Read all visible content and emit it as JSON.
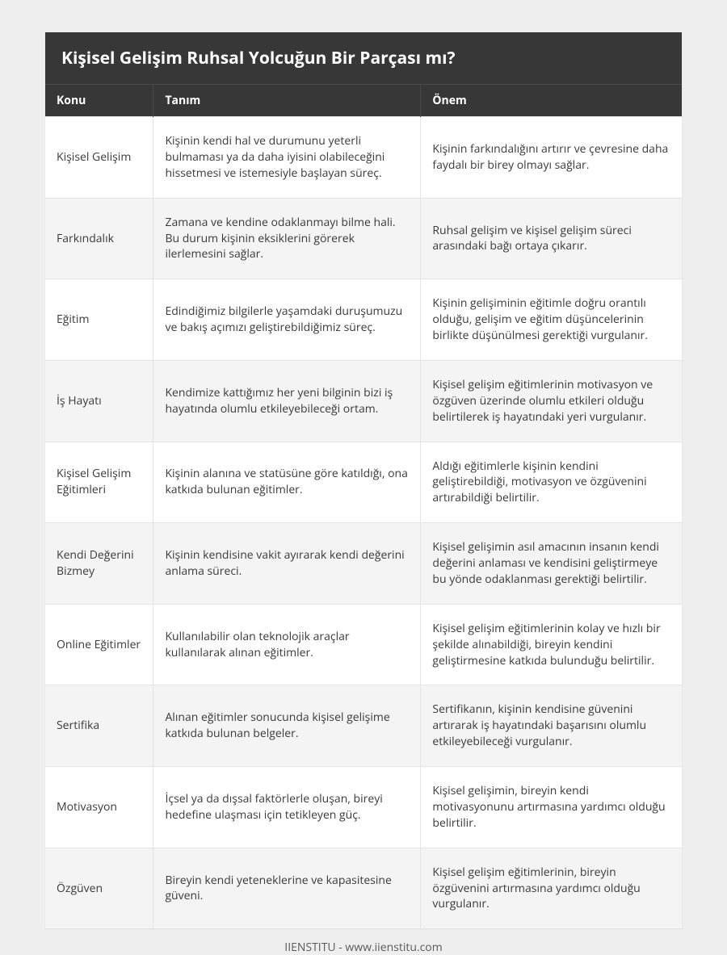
{
  "title": "Kişisel Gelişim Ruhsal Yolcuğun Bir Parçası mı?",
  "columns": [
    "Konu",
    "Tanım",
    "Önem"
  ],
  "rows": [
    {
      "topic": "Kişisel Gelişim",
      "def": "Kişinin kendi hal ve durumunu yeterli bulmaması ya da daha iyisini olabileceğini hissetmesi ve istemesiyle başlayan süreç.",
      "imp": "Kişinin farkındalığını artırır ve çevresine daha faydalı bir birey olmayı sağlar."
    },
    {
      "topic": "Farkındalık",
      "def": "Zamana ve kendine odaklanmayı bilme hali. Bu durum kişinin eksiklerini görerek ilerlemesini sağlar.",
      "imp": "Ruhsal gelişim ve kişisel gelişim süreci arasındaki bağı ortaya çıkarır."
    },
    {
      "topic": "Eğitim",
      "def": "Edindiğimiz bilgilerle yaşamdaki duruşumuzu ve bakış açımızı geliştirebildiğimiz süreç.",
      "imp": "Kişinin gelişiminin eğitimle doğru orantılı olduğu, gelişim ve eğitim düşüncelerinin birlikte düşünülmesi gerektiği vurgulanır."
    },
    {
      "topic": "İş Hayatı",
      "def": "Kendimize kattığımız her yeni bilginin bizi iş hayatında olumlu etkileyebileceği ortam.",
      "imp": "Kişisel gelişim eğitimlerinin motivasyon ve özgüven üzerinde olumlu etkileri olduğu belirtilerek iş hayatındaki yeri vurgulanır."
    },
    {
      "topic": "Kişisel Gelişim Eğitimleri",
      "def": "Kişinin alanına ve statüsüne göre katıldığı, ona katkıda bulunan eğitimler.",
      "imp": "Aldığı eğitimlerle kişinin kendini geliştirebildiği, motivasyon ve özgüvenini artırabildiği belirtilir."
    },
    {
      "topic": "Kendi Değerini Bizmey",
      "def": "Kişinin kendisine vakit ayırarak kendi değerini anlama süreci.",
      "imp": "Kişisel gelişimin asıl amacının insanın kendi değerini anlaması ve kendisini geliştirmeye bu yönde odaklanması gerektiği belirtilir."
    },
    {
      "topic": "Online Eğitimler",
      "def": "Kullanılabilir olan teknolojik araçlar kullanılarak alınan eğitimler.",
      "imp": "Kişisel gelişim eğitimlerinin kolay ve hızlı bir şekilde alınabildiği, bireyin kendini geliştirmesine katkıda bulunduğu belirtilir."
    },
    {
      "topic": "Sertifika",
      "def": "Alınan eğitimler sonucunda kişisel gelişime katkıda bulunan belgeler.",
      "imp": "Sertifikanın, kişinin kendisine güvenini artırarak iş hayatındaki başarısını olumlu etkileyebileceği vurgulanır."
    },
    {
      "topic": "Motivasyon",
      "def": "İçsel ya da dışsal faktörlerle oluşan, bireyi hedefine ulaşması için tetikleyen güç.",
      "imp": "Kişisel gelişimin, bireyin kendi motivasyonunu artırmasına yardımcı olduğu belirtilir."
    },
    {
      "topic": "Özgüven",
      "def": "Bireyin kendi yeteneklerine ve kapasitesine güveni.",
      "imp": "Kişisel gelişim eğitimlerinin, bireyin özgüvenini artırmasına yardımcı olduğu vurgulanır."
    }
  ],
  "footer": "IIENSTITU - www.iienstitu.com",
  "style": {
    "page_bg": "#eeeeee",
    "header_bg": "#373737",
    "header_fg": "#ffffff",
    "row_odd_bg": "#ffffff",
    "row_even_bg": "#f4f4f4",
    "border_color": "#e4e4e4",
    "text_color": "#3a3a3a",
    "footer_color": "#5a5a5a",
    "title_fontsize": 21,
    "header_fontsize": 14,
    "cell_fontsize": 14,
    "col_widths_pct": [
      17,
      42,
      41
    ]
  }
}
